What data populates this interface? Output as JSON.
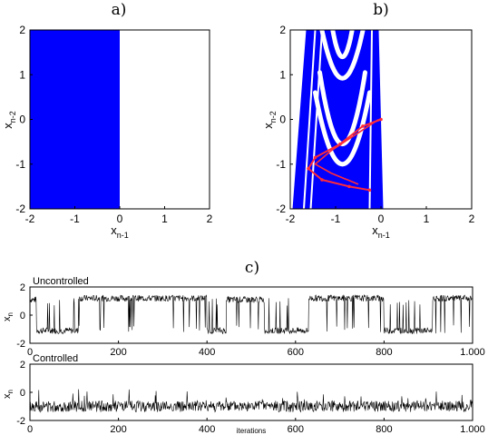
{
  "panel_labels": {
    "a": "a)",
    "b": "b)",
    "c": "c)"
  },
  "colors": {
    "region": "#0000ff",
    "orbit": "#ff2b3a",
    "trace": "#000000"
  },
  "chart_data": [
    {
      "id": "a",
      "type": "area",
      "title": "a)",
      "xlabel": "x",
      "xlabel_sub": "n-1",
      "ylabel": "x",
      "ylabel_sub": "n-2",
      "xlim": [
        -2,
        2
      ],
      "ylim": [
        -2,
        2
      ],
      "xticks": [
        "-2",
        "-1",
        "0",
        "1",
        "2"
      ],
      "yticks": [
        "-2",
        "-1",
        "0",
        "1",
        "2"
      ],
      "filled_region": {
        "x_from": -2,
        "x_to": 0,
        "y_from": -2,
        "y_to": 2,
        "color": "#0000ff"
      }
    },
    {
      "id": "b",
      "type": "area",
      "title": "b)",
      "xlabel": "x",
      "xlabel_sub": "n-1",
      "ylabel": "x",
      "ylabel_sub": "n-2",
      "xlim": [
        -2,
        2
      ],
      "ylim": [
        -2,
        2
      ],
      "xticks": [
        "-2",
        "-1",
        "0",
        "1",
        "2"
      ],
      "yticks": [
        "-2",
        "-1",
        "0",
        "1",
        "2"
      ],
      "region_band": {
        "x_left_at_bottom": -1.95,
        "x_left_at_top": -1.65,
        "x_right_at_bottom": 0.05,
        "x_right_at_top": -0.05
      },
      "white_parabolas": [
        {
          "vertex": [
            -0.85,
            0.92
          ],
          "spread": 0.55
        },
        {
          "vertex": [
            -0.85,
            1.4
          ],
          "spread": 0.35
        },
        {
          "vertex": [
            -0.85,
            -1.0
          ],
          "spread": 0.6
        },
        {
          "vertex": [
            -0.85,
            -0.55
          ],
          "spread": 0.5
        }
      ],
      "orbit_points": [
        [
          0.0,
          0.0
        ],
        [
          -0.4,
          -0.15
        ],
        [
          -0.9,
          -0.55
        ],
        [
          -1.45,
          -0.85
        ],
        [
          -1.6,
          -1.1
        ],
        [
          -1.3,
          -1.35
        ],
        [
          -0.7,
          -1.5
        ],
        [
          -0.25,
          -1.58
        ]
      ]
    },
    {
      "id": "c1",
      "type": "line",
      "series_name": "Uncontrolled",
      "ylabel": "x",
      "ylabel_sub": "n",
      "xlim": [
        0,
        1000
      ],
      "ylim": [
        -2,
        2
      ],
      "xticks": [
        "0",
        "200",
        "400",
        "600",
        "800",
        "1.000"
      ],
      "yticks": [
        "-2",
        "0",
        "2"
      ],
      "segments": [
        {
          "from": 0,
          "to": 15,
          "level": 1.1
        },
        {
          "from": 15,
          "to": 110,
          "level": -1.1
        },
        {
          "from": 110,
          "to": 155,
          "level": 1.2
        },
        {
          "from": 155,
          "to": 235,
          "level": 1.2
        },
        {
          "from": 235,
          "to": 400,
          "level": 1.2
        },
        {
          "from": 400,
          "to": 445,
          "level": -1.1
        },
        {
          "from": 445,
          "to": 530,
          "level": 1.1
        },
        {
          "from": 530,
          "to": 630,
          "level": -1.1
        },
        {
          "from": 630,
          "to": 800,
          "level": 1.2
        },
        {
          "from": 800,
          "to": 910,
          "level": -1.1
        },
        {
          "from": 910,
          "to": 1000,
          "level": 1.2
        }
      ]
    },
    {
      "id": "c2",
      "type": "line",
      "series_name": "Controlled",
      "ylabel": "x",
      "ylabel_sub": "n",
      "xlabel": "iterations",
      "xlim": [
        0,
        1000
      ],
      "ylim": [
        -2,
        2
      ],
      "xticks": [
        "0",
        "200",
        "400",
        "600",
        "800",
        "1.000"
      ],
      "yticks": [
        "-2",
        "0",
        "2"
      ],
      "mean_level": -1.0,
      "amplitude": 0.5
    }
  ]
}
